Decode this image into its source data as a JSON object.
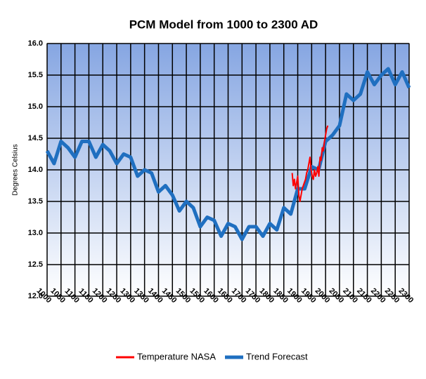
{
  "chart_data": {
    "type": "line",
    "title": "PCM Model from 1000 to 2300 AD",
    "y_label": "Degrees Celsius",
    "xlim": [
      1000,
      2300
    ],
    "xticks": [
      1000,
      1050,
      1100,
      1150,
      1200,
      1250,
      1300,
      1350,
      1400,
      1450,
      1500,
      1550,
      1600,
      1650,
      1700,
      1750,
      1800,
      1850,
      1900,
      1950,
      2000,
      2050,
      2100,
      2150,
      2200,
      2250,
      2300
    ],
    "ylim": [
      12,
      16
    ],
    "yticks": [
      {
        "value": 12,
        "label": "12.0"
      },
      12.5,
      {
        "value": 13,
        "label": "13.0"
      },
      13.5,
      {
        "value": 14,
        "label": "14.0"
      },
      14.5,
      {
        "value": 15,
        "label": "15.0"
      },
      15.5,
      {
        "value": 16,
        "label": "16.0"
      }
    ],
    "grid": true,
    "legend": "bottom",
    "series": [
      {
        "name": "Temperature NASA",
        "color": "#ff0000",
        "x": [
          1880,
          1884,
          1888,
          1892,
          1896,
          1900,
          1904,
          1908,
          1912,
          1916,
          1920,
          1924,
          1928,
          1932,
          1936,
          1940,
          1944,
          1948,
          1952,
          1956,
          1960,
          1964,
          1968,
          1972,
          1976,
          1980,
          1984,
          1988,
          1992,
          1996,
          2000,
          2004,
          2008
        ],
        "values": [
          13.95,
          13.75,
          13.85,
          13.7,
          13.8,
          13.9,
          13.6,
          13.5,
          13.6,
          13.7,
          13.75,
          13.8,
          13.85,
          13.95,
          14.0,
          14.1,
          14.2,
          14.0,
          13.9,
          13.85,
          14.0,
          13.9,
          13.95,
          14.05,
          13.9,
          14.2,
          14.15,
          14.35,
          14.3,
          14.45,
          14.55,
          14.65,
          14.7
        ]
      },
      {
        "name": "Trend Forecast",
        "color": "#1f6fc0",
        "x": [
          1000,
          1025,
          1050,
          1075,
          1100,
          1125,
          1150,
          1175,
          1200,
          1225,
          1250,
          1275,
          1300,
          1325,
          1350,
          1375,
          1400,
          1425,
          1450,
          1475,
          1500,
          1525,
          1550,
          1575,
          1600,
          1625,
          1650,
          1675,
          1700,
          1725,
          1750,
          1775,
          1800,
          1825,
          1850,
          1875,
          1900,
          1925,
          1950,
          1975,
          2000,
          2025,
          2050,
          2075,
          2100,
          2125,
          2150,
          2175,
          2200,
          2225,
          2250,
          2275,
          2300
        ],
        "values": [
          14.3,
          14.1,
          14.45,
          14.35,
          14.2,
          14.45,
          14.45,
          14.2,
          14.4,
          14.3,
          14.1,
          14.25,
          14.2,
          13.9,
          14.0,
          13.95,
          13.65,
          13.75,
          13.6,
          13.35,
          13.5,
          13.4,
          13.1,
          13.25,
          13.2,
          12.95,
          13.15,
          13.1,
          12.9,
          13.1,
          13.1,
          12.95,
          13.15,
          13.05,
          13.4,
          13.3,
          13.7,
          13.7,
          14.05,
          14.0,
          14.45,
          14.55,
          14.7,
          15.2,
          15.1,
          15.2,
          15.55,
          15.35,
          15.5,
          15.6,
          15.35,
          15.55,
          15.3
        ]
      }
    ]
  }
}
